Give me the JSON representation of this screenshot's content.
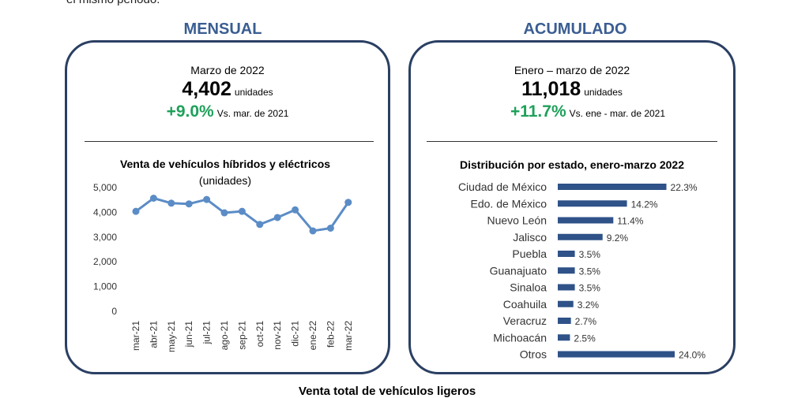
{
  "page": {
    "top_text": "el mismo periodo.",
    "bottom_text": "Venta total de vehículos ligeros"
  },
  "mensual": {
    "panel_title": "MENSUAL",
    "period": "Marzo de 2022",
    "value": "4,402",
    "unit": "unidades",
    "change": "+9.0%",
    "comparison": "Vs. mar. de 2021"
  },
  "acumulado": {
    "panel_title": "ACUMULADO",
    "period": "Enero – marzo de 2022",
    "value": "11,018",
    "unit": "unidades",
    "change": "+11.7%",
    "comparison": "Vs. ene - mar. de 2021"
  },
  "colors": {
    "series": "#5b8cc6",
    "bar": "#2f5288",
    "accent_green": "#1fa05a",
    "panel_title": "#3a5d92",
    "border": "#2b3f63"
  },
  "chart_data": [
    {
      "type": "line",
      "title": "Venta de vehículos híbridos y eléctricos",
      "subtitle": "(unidades)",
      "categories": [
        "mar-21",
        "abr-21",
        "may-21",
        "jun-21",
        "jul-21",
        "ago-21",
        "sep-21",
        "oct-21",
        "nov-21",
        "dic-21",
        "ene-22",
        "feb-22",
        "mar-22"
      ],
      "values": [
        4040,
        4570,
        4370,
        4340,
        4520,
        3980,
        4040,
        3510,
        3790,
        4100,
        3250,
        3360,
        4402
      ],
      "yticks": [
        "0",
        "1,000",
        "2,000",
        "3,000",
        "4,000",
        "5,000"
      ],
      "ylim": [
        0,
        5000
      ],
      "grid": false,
      "legend": "none"
    },
    {
      "type": "bar",
      "orientation": "horizontal",
      "title": "Distribución por estado, enero-marzo 2022",
      "categories": [
        "Ciudad de México",
        "Edo. de México",
        "Nuevo León",
        "Jalisco",
        "Puebla",
        "Guanajuato",
        "Sinaloa",
        "Coahuila",
        "Veracruz",
        "Michoacán",
        "Otros"
      ],
      "values": [
        22.3,
        14.2,
        11.4,
        9.2,
        3.5,
        3.5,
        3.5,
        3.2,
        2.7,
        2.5,
        24.0
      ],
      "labels": [
        "22.3%",
        "14.2%",
        "11.4%",
        "9.2%",
        "3.5%",
        "3.5%",
        "3.5%",
        "3.2%",
        "2.7%",
        "2.5%",
        "24.0%"
      ],
      "xlim": [
        0,
        24.0
      ],
      "grid": false,
      "legend": "none"
    }
  ]
}
